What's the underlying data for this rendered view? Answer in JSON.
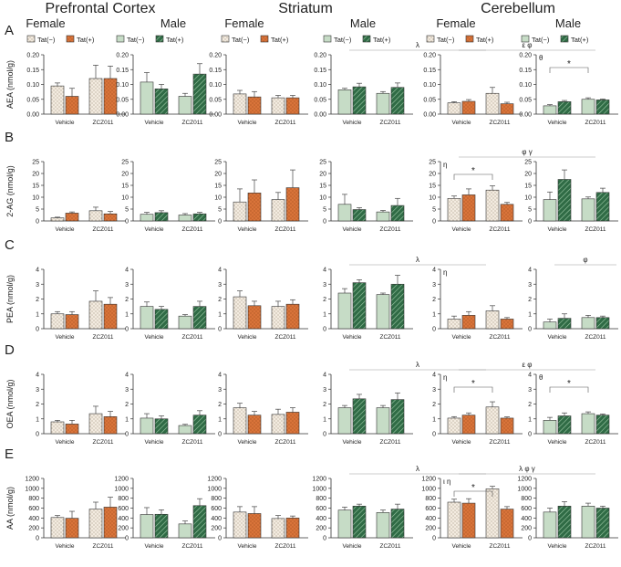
{
  "regions": [
    "Prefrontal Cortex",
    "Striatum",
    "Cerebellum"
  ],
  "sexes": [
    "Female",
    "Male"
  ],
  "legend": {
    "neg": "Tat(−)",
    "pos": "Tat(+)"
  },
  "categories": [
    "Vehicle",
    "ZCZ011"
  ],
  "colors": {
    "female_neg": "#f3ebe0",
    "female_pos": "#d9743a",
    "male_neg": "#c6dcc6",
    "male_pos": "#2f6b45"
  },
  "chart_data": {
    "type": "bar",
    "rows": [
      {
        "letter": "A",
        "ylabel": "AEA (nmol/g)",
        "panels": [
          {
            "ymax": 0.2,
            "ticks": [
              "0.00",
              "0.05",
              "0.10",
              "0.15",
              "0.20"
            ],
            "values": [
              0.095,
              0.06,
              0.12,
              0.12
            ],
            "errors": [
              0.01,
              0.027,
              0.045,
              0.042
            ]
          },
          {
            "ymax": 0.2,
            "ticks": [
              "0.00",
              "0.05",
              "0.10",
              "0.15",
              "0.20"
            ],
            "values": [
              0.108,
              0.085,
              0.06,
              0.135
            ],
            "errors": [
              0.032,
              0.015,
              0.01,
              0.035
            ]
          },
          {
            "ymax": 0.2,
            "ticks": [
              "0.00",
              "0.05",
              "0.10",
              "0.15",
              "0.20"
            ],
            "values": [
              0.068,
              0.058,
              0.055,
              0.055
            ],
            "errors": [
              0.012,
              0.018,
              0.008,
              0.008
            ]
          },
          {
            "ymax": 0.2,
            "ticks": [
              "0.00",
              "0.05",
              "0.10",
              "0.15",
              "0.20"
            ],
            "values": [
              0.082,
              0.092,
              0.07,
              0.09
            ],
            "errors": [
              0.005,
              0.012,
              0.006,
              0.015
            ],
            "sym": "λ"
          },
          {
            "ymax": 0.2,
            "ticks": [
              "0.00",
              "0.05",
              "0.10",
              "0.15",
              "0.20"
            ],
            "values": [
              0.038,
              0.043,
              0.07,
              0.035
            ],
            "errors": [
              0.004,
              0.006,
              0.02,
              0.005
            ],
            "sym": "ε φ"
          },
          {
            "ymax": 0.2,
            "ticks": [
              "0.00",
              "0.05",
              "0.10",
              "0.15",
              "0.20"
            ],
            "values": [
              0.028,
              0.042,
              0.05,
              0.048
            ],
            "errors": [
              0.004,
              0.004,
              0.005,
              0.003
            ],
            "left": "θ",
            "star": "*"
          }
        ]
      },
      {
        "letter": "B",
        "ylabel": "2-AG (nmol/g)",
        "panels": [
          {
            "ymax": 25,
            "ticks": [
              "0",
              "5",
              "10",
              "15",
              "20",
              "25"
            ],
            "values": [
              1.3,
              3.3,
              4.3,
              3.0
            ],
            "errors": [
              0.3,
              0.5,
              1.5,
              1.0
            ]
          },
          {
            "ymax": 25,
            "ticks": [
              "0",
              "5",
              "10",
              "15",
              "20",
              "25"
            ],
            "values": [
              2.8,
              3.5,
              2.5,
              3.0
            ],
            "errors": [
              0.8,
              0.8,
              0.6,
              0.6
            ]
          },
          {
            "ymax": 25,
            "ticks": [
              "0",
              "5",
              "10",
              "15",
              "20",
              "25"
            ],
            "values": [
              8.0,
              11.8,
              9.0,
              14.0
            ],
            "errors": [
              5.5,
              5.5,
              3.0,
              7.5
            ]
          },
          {
            "ymax": 25,
            "ticks": [
              "0",
              "5",
              "10",
              "15",
              "20",
              "25"
            ],
            "values": [
              7.0,
              4.8,
              3.8,
              6.5
            ],
            "errors": [
              4.2,
              0.8,
              0.6,
              3.0
            ]
          },
          {
            "ymax": 25,
            "ticks": [
              "0",
              "5",
              "10",
              "15",
              "20",
              "25"
            ],
            "values": [
              9.5,
              11.0,
              13.0,
              7.0
            ],
            "errors": [
              1.0,
              2.5,
              1.8,
              0.8
            ],
            "sym": "φ γ",
            "left": "η",
            "star": "*"
          },
          {
            "ymax": 25,
            "ticks": [
              "0",
              "5",
              "10",
              "15",
              "20",
              "25"
            ],
            "values": [
              9.0,
              17.5,
              9.3,
              12.0
            ],
            "errors": [
              3.2,
              4.0,
              0.8,
              1.8
            ]
          }
        ]
      },
      {
        "letter": "C",
        "ylabel": "PEA (nmol/g)",
        "panels": [
          {
            "ymax": 4,
            "ticks": [
              "0",
              "1",
              "2",
              "3",
              "4"
            ],
            "values": [
              1.0,
              0.95,
              1.85,
              1.65
            ],
            "errors": [
              0.15,
              0.2,
              0.7,
              0.45
            ]
          },
          {
            "ymax": 4,
            "ticks": [
              "0",
              "1",
              "2",
              "3",
              "4"
            ],
            "values": [
              1.5,
              1.3,
              0.85,
              1.5
            ],
            "errors": [
              0.3,
              0.2,
              0.1,
              0.35
            ]
          },
          {
            "ymax": 4,
            "ticks": [
              "0",
              "1",
              "2",
              "3",
              "4"
            ],
            "values": [
              2.15,
              1.55,
              1.5,
              1.65
            ],
            "errors": [
              0.4,
              0.3,
              0.35,
              0.3
            ]
          },
          {
            "ymax": 4,
            "ticks": [
              "0",
              "1",
              "2",
              "3",
              "4"
            ],
            "values": [
              2.4,
              3.1,
              2.3,
              3.0
            ],
            "errors": [
              0.3,
              0.2,
              0.1,
              0.6
            ],
            "sym": "λ"
          },
          {
            "ymax": 4,
            "ticks": [
              "0",
              "1",
              "2",
              "3",
              "4"
            ],
            "values": [
              0.65,
              0.9,
              1.2,
              0.65
            ],
            "errors": [
              0.2,
              0.25,
              0.35,
              0.1
            ],
            "left": "η"
          },
          {
            "ymax": 4,
            "ticks": [
              "0",
              "1",
              "2",
              "3",
              "4"
            ],
            "values": [
              0.45,
              0.7,
              0.75,
              0.75
            ],
            "errors": [
              0.2,
              0.3,
              0.15,
              0.1
            ],
            "sym": "φ"
          }
        ]
      },
      {
        "letter": "D",
        "ylabel": "OEA (nmol/g)",
        "panels": [
          {
            "ymax": 4,
            "ticks": [
              "0",
              "1",
              "2",
              "3",
              "4"
            ],
            "values": [
              0.8,
              0.65,
              1.35,
              1.15
            ],
            "errors": [
              0.1,
              0.25,
              0.5,
              0.35
            ]
          },
          {
            "ymax": 4,
            "ticks": [
              "0",
              "1",
              "2",
              "3",
              "4"
            ],
            "values": [
              1.05,
              1.0,
              0.55,
              1.25
            ],
            "errors": [
              0.3,
              0.2,
              0.08,
              0.3
            ]
          },
          {
            "ymax": 4,
            "ticks": [
              "0",
              "1",
              "2",
              "3",
              "4"
            ],
            "values": [
              1.75,
              1.25,
              1.3,
              1.45
            ],
            "errors": [
              0.3,
              0.25,
              0.35,
              0.3
            ]
          },
          {
            "ymax": 4,
            "ticks": [
              "0",
              "1",
              "2",
              "3",
              "4"
            ],
            "values": [
              1.75,
              2.35,
              1.75,
              2.3
            ],
            "errors": [
              0.15,
              0.3,
              0.15,
              0.45
            ],
            "sym": "λ"
          },
          {
            "ymax": 4,
            "ticks": [
              "0",
              "1",
              "2",
              "3",
              "4"
            ],
            "values": [
              1.05,
              1.25,
              1.8,
              1.05
            ],
            "errors": [
              0.1,
              0.15,
              0.35,
              0.08
            ],
            "sym": "ε φ",
            "left": "η",
            "star": "*"
          },
          {
            "ymax": 4,
            "ticks": [
              "0",
              "1",
              "2",
              "3",
              "4"
            ],
            "values": [
              0.9,
              1.2,
              1.35,
              1.25
            ],
            "errors": [
              0.2,
              0.2,
              0.12,
              0.08
            ],
            "left": "θ",
            "star": "*"
          }
        ]
      },
      {
        "letter": "E",
        "ylabel": "AA (nmol/g)",
        "panels": [
          {
            "ymax": 1200,
            "ticks": [
              "0",
              "200",
              "400",
              "600",
              "800",
              "1000",
              "1200"
            ],
            "values": [
              410,
              395,
              580,
              620
            ],
            "errors": [
              40,
              140,
              140,
              200
            ]
          },
          {
            "ymax": 1200,
            "ticks": [
              "0",
              "200",
              "400",
              "600",
              "800",
              "1000",
              "1200"
            ],
            "values": [
              470,
              475,
              280,
              650
            ],
            "errors": [
              140,
              90,
              60,
              140
            ]
          },
          {
            "ymax": 1200,
            "ticks": [
              "0",
              "200",
              "400",
              "600",
              "800",
              "1000",
              "1200"
            ],
            "values": [
              520,
              490,
              390,
              400
            ],
            "errors": [
              110,
              140,
              60,
              40
            ]
          },
          {
            "ymax": 1200,
            "ticks": [
              "0",
              "200",
              "400",
              "600",
              "800",
              "1000",
              "1200"
            ],
            "values": [
              560,
              640,
              510,
              580
            ],
            "errors": [
              60,
              40,
              50,
              100
            ],
            "sym": "λ"
          },
          {
            "ymax": 1200,
            "ticks": [
              "0",
              "200",
              "400",
              "600",
              "800",
              "1000",
              "1200"
            ],
            "values": [
              720,
              700,
              990,
              580
            ],
            "errors": [
              60,
              90,
              50,
              50
            ],
            "sym": "λ φ γ",
            "left": "ι η",
            "star": "*"
          },
          {
            "ymax": 1200,
            "ticks": [
              "0",
              "200",
              "400",
              "600",
              "800",
              "1000",
              "1200"
            ],
            "values": [
              520,
              640,
              640,
              600
            ],
            "errors": [
              80,
              90,
              60,
              40
            ]
          }
        ]
      }
    ]
  }
}
